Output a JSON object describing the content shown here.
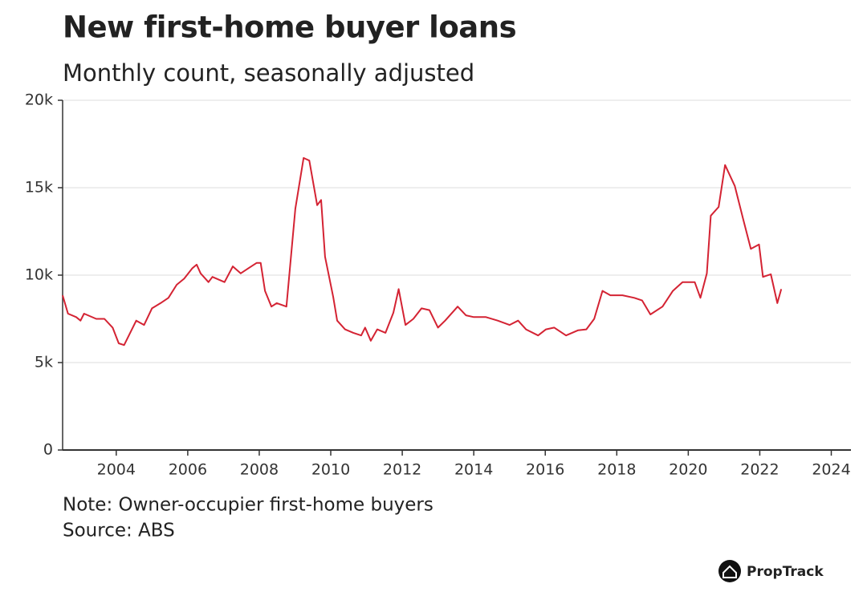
{
  "chart_data": {
    "type": "line",
    "title": "New first-home buyer loans",
    "subtitle": "Monthly count, seasonally adjusted",
    "note": "Note: Owner-occupier first-home buyers",
    "source": "Source: ABS",
    "brand": "PropTrack",
    "x": [
      2002.5,
      2002.65,
      2002.88,
      2003.0,
      2003.1,
      2003.44,
      2003.67,
      2003.9,
      2004.07,
      2004.22,
      2004.56,
      2004.78,
      2005.0,
      2005.24,
      2005.46,
      2005.69,
      2005.9,
      2006.13,
      2006.25,
      2006.36,
      2006.58,
      2006.69,
      2007.03,
      2007.26,
      2007.48,
      2007.7,
      2007.93,
      2008.04,
      2008.16,
      2008.34,
      2008.49,
      2008.76,
      2009.01,
      2009.24,
      2009.4,
      2009.62,
      2009.73,
      2009.84,
      2010.07,
      2010.18,
      2010.4,
      2010.63,
      2010.85,
      2010.96,
      2011.12,
      2011.3,
      2011.53,
      2011.75,
      2011.9,
      2012.09,
      2012.31,
      2012.54,
      2012.76,
      2013.0,
      2013.2,
      2013.55,
      2013.78,
      2014.0,
      2014.34,
      2014.67,
      2015.0,
      2015.24,
      2015.46,
      2015.8,
      2016.02,
      2016.25,
      2016.58,
      2016.92,
      2017.15,
      2017.37,
      2017.6,
      2017.82,
      2018.16,
      2018.49,
      2018.71,
      2018.94,
      2019.28,
      2019.57,
      2019.84,
      2020.18,
      2020.34,
      2020.52,
      2020.63,
      2020.85,
      2021.03,
      2021.3,
      2021.53,
      2021.75,
      2021.98,
      2022.09,
      2022.31,
      2022.49,
      2022.6
    ],
    "series": [
      {
        "name": "New first-home buyer loans",
        "color": "#d42333",
        "values": [
          8850,
          7800,
          7600,
          7400,
          7800,
          7500,
          7500,
          7000,
          6100,
          6000,
          7400,
          7150,
          8100,
          8400,
          8700,
          9450,
          9800,
          10400,
          10600,
          10100,
          9600,
          9900,
          9600,
          10500,
          10100,
          10400,
          10700,
          10700,
          9100,
          8200,
          8400,
          8200,
          13800,
          16700,
          16550,
          14000,
          14300,
          11050,
          8750,
          7400,
          6900,
          6700,
          6550,
          7000,
          6250,
          6900,
          6700,
          7850,
          9200,
          7150,
          7500,
          8100,
          8000,
          7000,
          7400,
          8200,
          7700,
          7600,
          7600,
          7400,
          7150,
          7400,
          6900,
          6550,
          6900,
          7000,
          6550,
          6850,
          6900,
          7500,
          9100,
          8850,
          8850,
          8700,
          8550,
          7750,
          8200,
          9100,
          9600,
          9600,
          8700,
          10100,
          13400,
          13900,
          16300,
          15100,
          13250,
          11500,
          11750,
          9900,
          10050,
          8400,
          9200
        ]
      }
    ],
    "xlim": [
      2002.5,
      2024.55
    ],
    "ylim": [
      0,
      20000
    ],
    "xticks": [
      2004,
      2006,
      2008,
      2010,
      2012,
      2014,
      2016,
      2018,
      2020,
      2022,
      2024
    ],
    "yticks": [
      0,
      {
        "value": 5000,
        "label": "5k"
      },
      {
        "value": 10000,
        "label": "10k"
      },
      {
        "value": 15000,
        "label": "15k"
      },
      {
        "value": 20000,
        "label": "20k"
      }
    ],
    "grid": true
  }
}
